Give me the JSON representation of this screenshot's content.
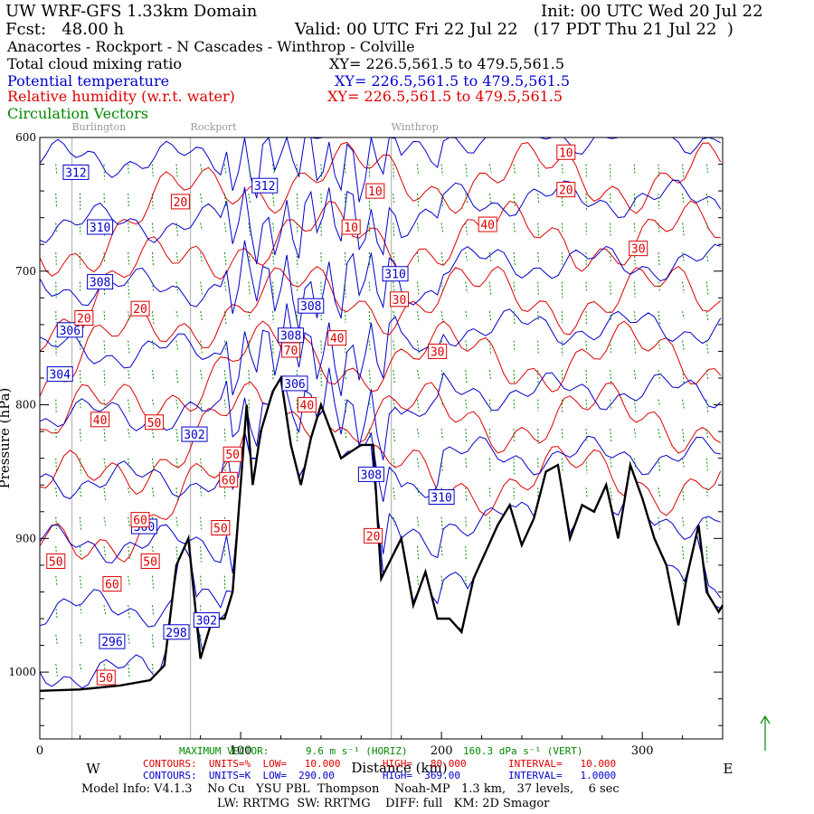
{
  "header": {
    "model": "UW WRF-GFS 1.33km Domain",
    "init": "Init: 00 UTC Wed 20 Jul 22",
    "fcst": "Fcst:   48.00 h",
    "valid": "Valid: 00 UTC Fri 22 Jul 22   (17 PDT Thu 21 Jul 22  )",
    "transect": "Anacortes - Rockport - N Cascades - Winthrop - Colville",
    "fields": [
      {
        "label": "Total cloud mixing ratio",
        "xy": "XY= 226.5,561.5 to 479.5,561.5",
        "color": "#000000"
      },
      {
        "label": "Potential temperature",
        "xy": "XY= 226.5,561.5 to 479.5,561.5",
        "color": "#0000cc"
      },
      {
        "label": "Relative humidity (w.r.t. water)",
        "xy": "XY= 226.5,561.5 to 479.5,561.5",
        "color": "#dd0000"
      },
      {
        "label": "Circulation Vectors",
        "xy": "",
        "color": "#008800"
      }
    ]
  },
  "places": [
    {
      "name": "Burlington",
      "x": 16
    },
    {
      "name": "Rockport",
      "x": 75
    },
    {
      "name": "Winthrop",
      "x": 175
    }
  ],
  "chart_data": {
    "type": "cross-section",
    "xlabel": "Distance (km)",
    "ylabel": "Pressure (hPa)",
    "xlim": [
      0,
      340
    ],
    "ylim": [
      1050,
      600
    ],
    "x_ticks": [
      0,
      100,
      200,
      300
    ],
    "y_ticks": [
      600,
      700,
      800,
      900,
      1000
    ],
    "x_end_labels": {
      "west": "W",
      "east": "E"
    },
    "terrain_surface_pressure": [
      [
        0,
        1014
      ],
      [
        20,
        1013
      ],
      [
        40,
        1010
      ],
      [
        55,
        1006
      ],
      [
        62,
        995
      ],
      [
        68,
        920
      ],
      [
        74,
        900
      ],
      [
        80,
        990
      ],
      [
        86,
        960
      ],
      [
        92,
        960
      ],
      [
        96,
        940
      ],
      [
        100,
        860
      ],
      [
        103,
        800
      ],
      [
        106,
        860
      ],
      [
        110,
        820
      ],
      [
        116,
        790
      ],
      [
        120,
        780
      ],
      [
        125,
        830
      ],
      [
        130,
        860
      ],
      [
        135,
        825
      ],
      [
        140,
        800
      ],
      [
        150,
        840
      ],
      [
        160,
        830
      ],
      [
        166,
        830
      ],
      [
        170,
        930
      ],
      [
        175,
        915
      ],
      [
        180,
        900
      ],
      [
        186,
        950
      ],
      [
        192,
        925
      ],
      [
        198,
        960
      ],
      [
        204,
        960
      ],
      [
        210,
        970
      ],
      [
        216,
        930
      ],
      [
        222,
        910
      ],
      [
        228,
        890
      ],
      [
        234,
        875
      ],
      [
        240,
        905
      ],
      [
        246,
        885
      ],
      [
        252,
        850
      ],
      [
        258,
        845
      ],
      [
        264,
        900
      ],
      [
        270,
        875
      ],
      [
        276,
        880
      ],
      [
        282,
        860
      ],
      [
        288,
        900
      ],
      [
        294,
        845
      ],
      [
        300,
        870
      ],
      [
        306,
        900
      ],
      [
        312,
        920
      ],
      [
        318,
        965
      ],
      [
        322,
        930
      ],
      [
        328,
        890
      ],
      [
        332,
        940
      ],
      [
        338,
        955
      ],
      [
        340,
        950
      ]
    ],
    "theta_contours": {
      "units": "K",
      "low": 290,
      "high": 369,
      "interval": 1,
      "labels": [
        {
          "value": 312,
          "x": 18,
          "p": 626
        },
        {
          "value": 312,
          "x": 112,
          "p": 636
        },
        {
          "value": 310,
          "x": 30,
          "p": 667
        },
        {
          "value": 308,
          "x": 30,
          "p": 708
        },
        {
          "value": 306,
          "x": 15,
          "p": 744
        },
        {
          "value": 304,
          "x": 10,
          "p": 777
        },
        {
          "value": 308,
          "x": 135,
          "p": 726
        },
        {
          "value": 308,
          "x": 125,
          "p": 748
        },
        {
          "value": 306,
          "x": 127,
          "p": 784
        },
        {
          "value": 310,
          "x": 177,
          "p": 702
        },
        {
          "value": 302,
          "x": 77,
          "p": 822
        },
        {
          "value": 308,
          "x": 165,
          "p": 852
        },
        {
          "value": 310,
          "x": 200,
          "p": 869
        },
        {
          "value": 300,
          "x": 52,
          "p": 891
        },
        {
          "value": 298,
          "x": 68,
          "p": 970
        },
        {
          "value": 296,
          "x": 36,
          "p": 977
        },
        {
          "value": 302,
          "x": 83,
          "p": 961
        }
      ]
    },
    "rh_contours": {
      "units": "%",
      "low": 10,
      "high": 80,
      "interval": 10,
      "labels": [
        {
          "value": 10,
          "x": 262,
          "p": 611
        },
        {
          "value": 10,
          "x": 167,
          "p": 640
        },
        {
          "value": 10,
          "x": 155,
          "p": 667
        },
        {
          "value": 20,
          "x": 70,
          "p": 648
        },
        {
          "value": 20,
          "x": 262,
          "p": 639
        },
        {
          "value": 20,
          "x": 22,
          "p": 735
        },
        {
          "value": 20,
          "x": 50,
          "p": 728
        },
        {
          "value": 40,
          "x": 223,
          "p": 665
        },
        {
          "value": 30,
          "x": 298,
          "p": 683
        },
        {
          "value": 30,
          "x": 179,
          "p": 721
        },
        {
          "value": 30,
          "x": 198,
          "p": 760
        },
        {
          "value": 40,
          "x": 148,
          "p": 750
        },
        {
          "value": 70,
          "x": 125,
          "p": 759
        },
        {
          "value": 40,
          "x": 133,
          "p": 800
        },
        {
          "value": 40,
          "x": 30,
          "p": 811
        },
        {
          "value": 50,
          "x": 57,
          "p": 813
        },
        {
          "value": 50,
          "x": 96,
          "p": 837
        },
        {
          "value": 60,
          "x": 94,
          "p": 856
        },
        {
          "value": 60,
          "x": 50,
          "p": 886
        },
        {
          "value": 50,
          "x": 90,
          "p": 892
        },
        {
          "value": 50,
          "x": 55,
          "p": 917
        },
        {
          "value": 50,
          "x": 8,
          "p": 917
        },
        {
          "value": 60,
          "x": 36,
          "p": 934
        },
        {
          "value": 20,
          "x": 166,
          "p": 898
        },
        {
          "value": 50,
          "x": 33,
          "p": 1004
        }
      ]
    }
  },
  "max_vector": {
    "label": "MAXIMUM VECTOR:",
    "horiz": "9.6 m s⁻¹ (HORIZ)",
    "vert": "160.3 dPa s⁻¹ (VERT)"
  },
  "contours_footer": [
    {
      "text": "CONTOURS:  UNITS=%  LOW=   10.000       HIGH=   80.000       INTERVAL=   10.000",
      "color": "#dd0000"
    },
    {
      "text": "CONTOURS:  UNITS=K  LOW=  290.00        HIGH=  369.00        INTERVAL=   1.0000",
      "color": "#0000cc"
    }
  ],
  "model_info": [
    "Model Info: V4.1.3    No Cu   YSU PBL  Thompson    Noah-MP   1.3 km,   37 levels,    6 sec",
    "LW: RRTMG  SW: RRTMG    DIFF: full   KM: 2D Smagor"
  ],
  "colors": {
    "theta": "#0000cc",
    "rh": "#dd0000",
    "vector": "#008800",
    "terrain": "#000000",
    "grid": "#bbbbbb"
  }
}
